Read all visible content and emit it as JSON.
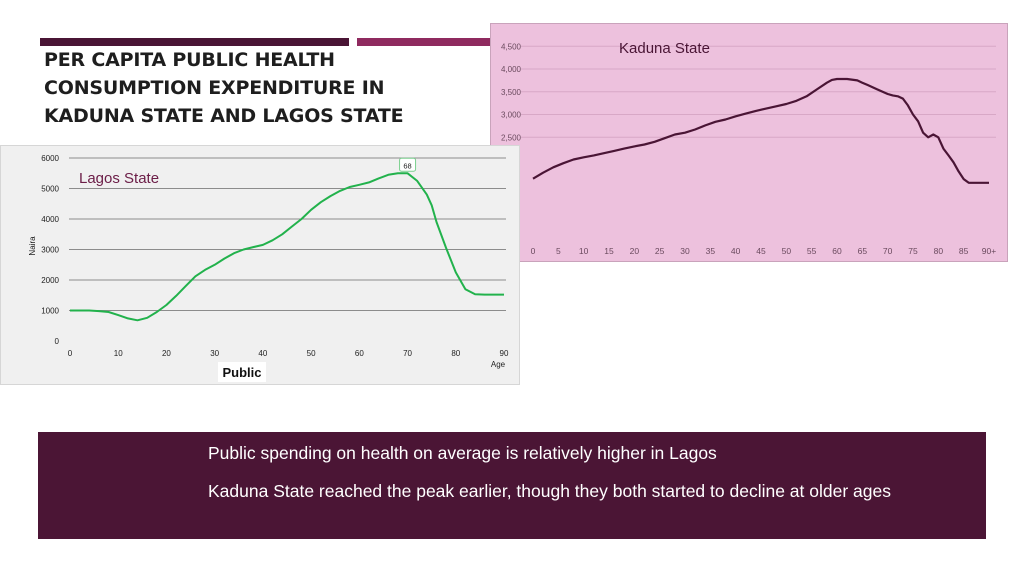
{
  "slide": {
    "title": "PER CAPITA PUBLIC HEALTH CONSUMPTION EXPENDITURE IN KADUNA STATE AND LAGOS STATE",
    "accent_dark": "#4a1535",
    "accent_light": "#8f2a5f"
  },
  "notes": [
    "Public spending on health on average is relatively higher in Lagos",
    "Kaduna State reached the peak earlier, though they both started to decline at older ages"
  ],
  "chart_data": [
    {
      "type": "line",
      "title": "Kaduna State",
      "line_color": "#4a1535",
      "background": "#edc1dd",
      "x_tick_labels": [
        "0",
        "5",
        "10",
        "15",
        "20",
        "25",
        "30",
        "35",
        "40",
        "45",
        "50",
        "55",
        "60",
        "65",
        "70",
        "75",
        "80",
        "85",
        "90+"
      ],
      "y_tick_labels": [
        "2,500",
        "3,000",
        "3,500",
        "4,000",
        "4,500"
      ],
      "ylim": [
        0,
        4500
      ],
      "grid": true,
      "series": [
        {
          "x": [
            0,
            2,
            4,
            6,
            8,
            10,
            12,
            14,
            16,
            18,
            20,
            22,
            24,
            26,
            28,
            30,
            32,
            34,
            36,
            38,
            40,
            42,
            44,
            46,
            48,
            50,
            52,
            54,
            56,
            58,
            59,
            60,
            62,
            64,
            65,
            66,
            68,
            70,
            71,
            72,
            73,
            74,
            75,
            76,
            77,
            78,
            79,
            80,
            81,
            82,
            83,
            84,
            85,
            86,
            87,
            88,
            90
          ],
          "values": [
            1590,
            1720,
            1840,
            1930,
            2010,
            2060,
            2100,
            2150,
            2200,
            2250,
            2300,
            2340,
            2400,
            2480,
            2560,
            2600,
            2670,
            2760,
            2840,
            2890,
            2960,
            3020,
            3080,
            3130,
            3180,
            3230,
            3300,
            3400,
            3550,
            3700,
            3760,
            3780,
            3780,
            3750,
            3700,
            3650,
            3550,
            3450,
            3420,
            3400,
            3350,
            3200,
            3000,
            2850,
            2600,
            2500,
            2560,
            2500,
            2250,
            2100,
            1950,
            1750,
            1580,
            1500,
            1500,
            1500,
            1500
          ]
        }
      ]
    },
    {
      "type": "line",
      "title": "Lagos State",
      "xlabel": "Age",
      "ylabel": "Naira",
      "caption": "Public",
      "line_color": "#22b24c",
      "x_tick_labels": [
        "0",
        "10",
        "20",
        "30",
        "40",
        "50",
        "60",
        "70",
        "80",
        "90"
      ],
      "y_tick_labels": [
        "0",
        "1000",
        "2000",
        "3000",
        "4000",
        "5000",
        "6000"
      ],
      "xlim": [
        0,
        90
      ],
      "ylim": [
        0,
        6000
      ],
      "grid": true,
      "annotation": {
        "x": 70,
        "y": 5500,
        "text": "68"
      },
      "series": [
        {
          "x": [
            0,
            4,
            6,
            8,
            10,
            12,
            14,
            16,
            18,
            20,
            22,
            24,
            26,
            28,
            30,
            32,
            34,
            36,
            38,
            40,
            42,
            44,
            46,
            48,
            50,
            52,
            54,
            56,
            58,
            60,
            62,
            64,
            66,
            68,
            70,
            72,
            74,
            75,
            76,
            78,
            80,
            82,
            84,
            86,
            88,
            90
          ],
          "values": [
            1000,
            1000,
            980,
            950,
            850,
            740,
            680,
            760,
            950,
            1180,
            1480,
            1800,
            2120,
            2330,
            2500,
            2700,
            2880,
            3000,
            3080,
            3150,
            3300,
            3500,
            3750,
            4000,
            4300,
            4550,
            4750,
            4920,
            5050,
            5120,
            5200,
            5330,
            5450,
            5500,
            5500,
            5250,
            4800,
            4450,
            3900,
            3050,
            2250,
            1700,
            1530,
            1520,
            1520,
            1520
          ]
        }
      ]
    }
  ]
}
